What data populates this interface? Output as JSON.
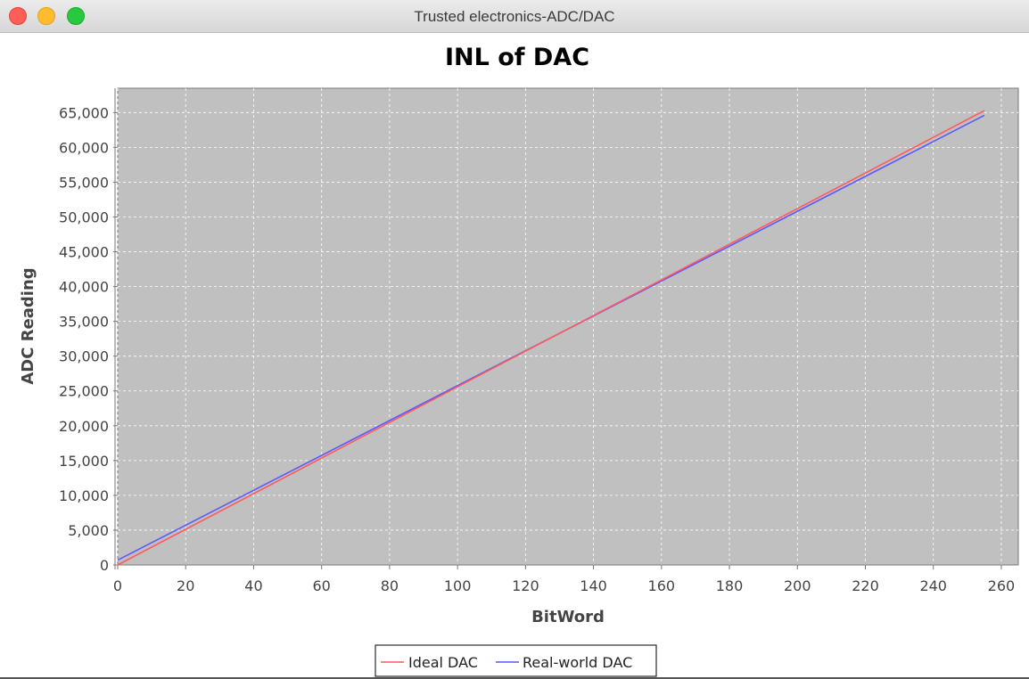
{
  "window": {
    "title": "Trusted electronics-ADC/DAC"
  },
  "colors": {
    "plot_background": "#c0c0c0",
    "grid": "#ffffff",
    "ideal": "#ff5a5a",
    "real": "#5a5aff"
  },
  "chart_data": {
    "type": "line",
    "title": "INL of DAC",
    "xlabel": "BitWord",
    "ylabel": "ADC Reading",
    "xlim": [
      0,
      265
    ],
    "ylim": [
      0,
      68500
    ],
    "xticks": [
      0,
      20,
      40,
      60,
      80,
      100,
      120,
      140,
      160,
      180,
      200,
      220,
      240,
      260
    ],
    "yticks": [
      0,
      5000,
      10000,
      15000,
      20000,
      25000,
      30000,
      35000,
      40000,
      45000,
      50000,
      55000,
      60000,
      65000
    ],
    "xtick_labels": [
      "0",
      "20",
      "40",
      "60",
      "80",
      "100",
      "120",
      "140",
      "160",
      "180",
      "200",
      "220",
      "240",
      "260"
    ],
    "ytick_labels": [
      "0",
      "5,000",
      "10,000",
      "15,000",
      "20,000",
      "25,000",
      "30,000",
      "35,000",
      "40,000",
      "45,000",
      "50,000",
      "55,000",
      "60,000",
      "65,000"
    ],
    "grid": true,
    "legend_position": "bottom",
    "series": [
      {
        "name": "Ideal DAC",
        "x": [
          0,
          255
        ],
        "y": [
          0,
          65280
        ]
      },
      {
        "name": "Real-world DAC",
        "x": [
          0,
          255
        ],
        "y": [
          700,
          64600
        ]
      }
    ]
  }
}
